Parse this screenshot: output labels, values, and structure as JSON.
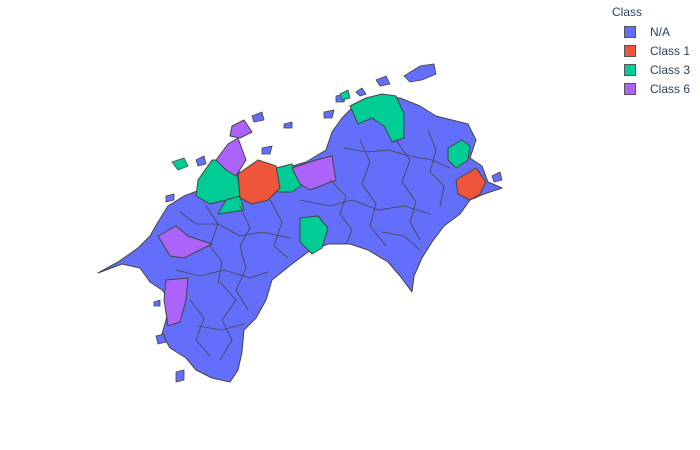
{
  "legend": {
    "title": "Class",
    "items": [
      {
        "label": "N/A",
        "color": "#636efa"
      },
      {
        "label": "Class 1",
        "color": "#ef553b"
      },
      {
        "label": "Class 3",
        "color": "#00cc96"
      },
      {
        "label": "Class 6",
        "color": "#ab63fa"
      }
    ]
  }
}
